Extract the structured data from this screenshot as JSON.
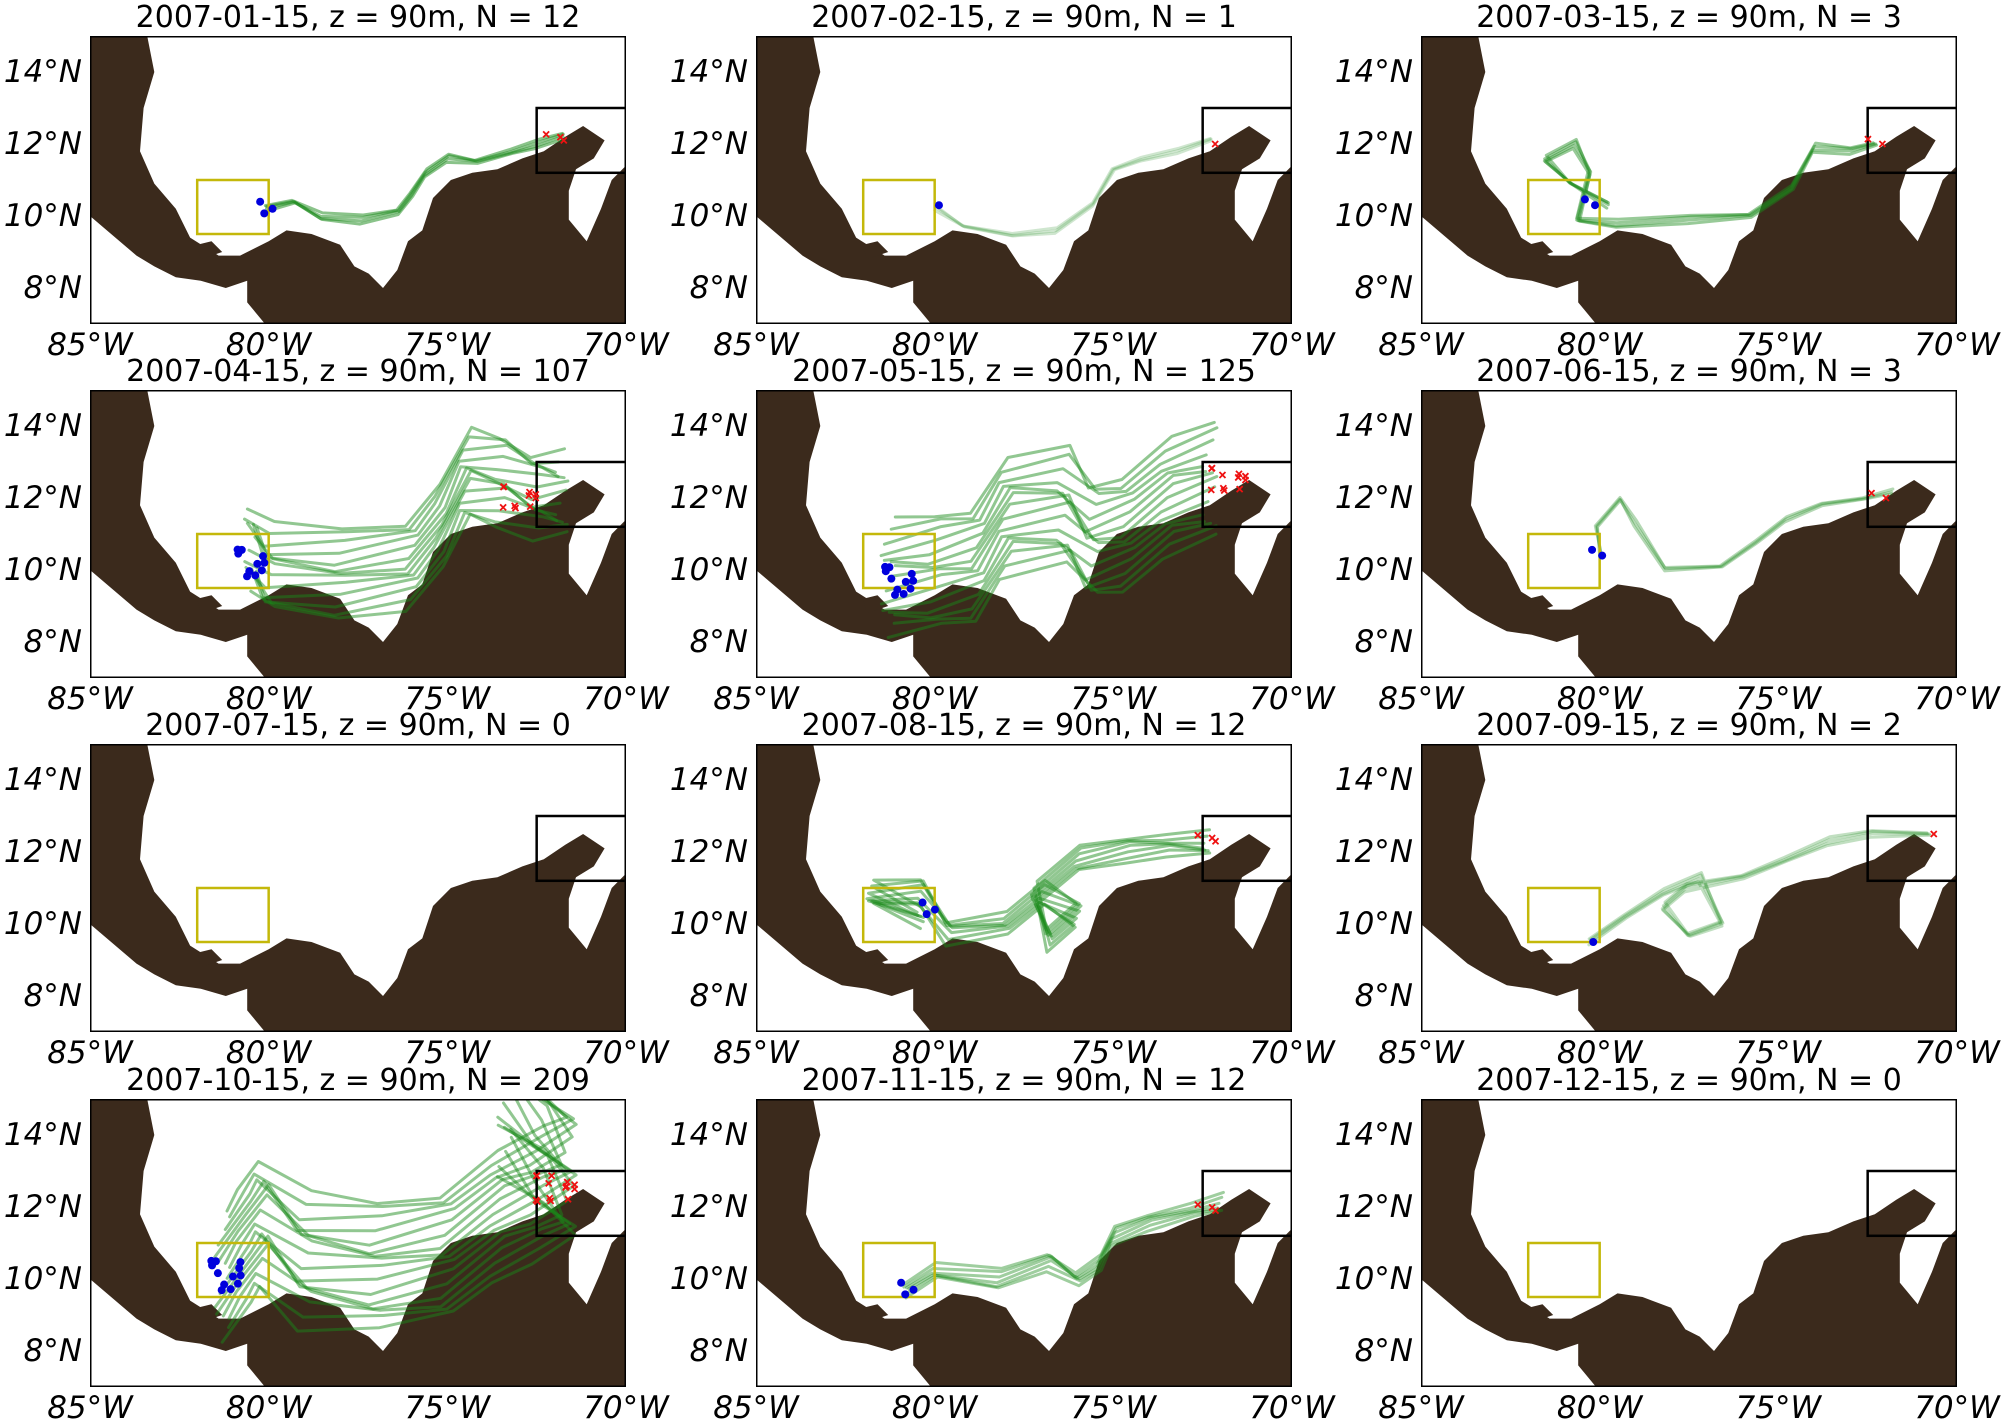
{
  "figure": {
    "lat_ticks": [
      "14°N",
      "12°N",
      "10°N",
      "8°N"
    ],
    "lon_ticks": [
      "85°W",
      "80°W",
      "75°W",
      "70°W"
    ],
    "colors": {
      "land": "#3b2a1c",
      "sea": "#ffffff",
      "trajectory": "#1a8a1a",
      "release_point": "#0000dd",
      "end_point": "#ee1111",
      "source_box": "#c4b80a",
      "target_box": "#000000"
    },
    "panels": [
      {
        "title": "2007-01-15, z = 90m, N = 12"
      },
      {
        "title": "2007-02-15, z = 90m, N = 1"
      },
      {
        "title": "2007-03-15, z = 90m, N = 3"
      },
      {
        "title": "2007-04-15, z = 90m, N = 107"
      },
      {
        "title": "2007-05-15, z = 90m, N = 125"
      },
      {
        "title": "2007-06-15, z = 90m, N = 3"
      },
      {
        "title": "2007-07-15, z = 90m, N = 0"
      },
      {
        "title": "2007-08-15, z = 90m, N = 12"
      },
      {
        "title": "2007-09-15, z = 90m, N = 2"
      },
      {
        "title": "2007-10-15, z = 90m, N = 209"
      },
      {
        "title": "2007-11-15, z = 90m, N = 12"
      },
      {
        "title": "2007-12-15, z = 90m, N = 0"
      }
    ]
  },
  "chart_data": {
    "type": "map",
    "lon_range": [
      -85,
      -70
    ],
    "lat_range": [
      7,
      15
    ],
    "source_box": {
      "lon": [
        -82,
        -80
      ],
      "lat": [
        9.5,
        11
      ]
    },
    "target_box": {
      "lon": [
        -72.5,
        -70
      ],
      "lat": [
        11.2,
        13
      ]
    },
    "panels": [
      {
        "date": "2007-01-15",
        "depth_m": 90,
        "N": 12,
        "path": [
          [
            -80.1,
            10.2
          ],
          [
            -79.3,
            10.4
          ],
          [
            -78.5,
            10.0
          ],
          [
            -77.4,
            9.9
          ],
          [
            -76.4,
            10.1
          ],
          [
            -76.0,
            10.6
          ],
          [
            -75.6,
            11.2
          ],
          [
            -75.0,
            11.6
          ],
          [
            -74.2,
            11.5
          ],
          [
            -73.2,
            11.8
          ],
          [
            -72.5,
            12.0
          ],
          [
            -71.8,
            12.2
          ]
        ],
        "spread": 0.6,
        "alpha": 0.85,
        "start": [
          -80.1,
          10.2
        ],
        "end": [
          -72.0,
          12.1
        ]
      },
      {
        "date": "2007-02-15",
        "depth_m": 90,
        "N": 1,
        "path": [
          [
            -80.0,
            10.2
          ],
          [
            -79.2,
            9.7
          ],
          [
            -77.8,
            9.5
          ],
          [
            -76.6,
            9.6
          ],
          [
            -75.6,
            10.3
          ],
          [
            -75.0,
            11.3
          ],
          [
            -74.2,
            11.6
          ],
          [
            -73.2,
            11.8
          ],
          [
            -72.3,
            12.1
          ]
        ],
        "spread": 0.5,
        "alpha": 0.35,
        "start": [
          -80.0,
          10.3
        ],
        "end": [
          -72.3,
          12.0
        ]
      },
      {
        "date": "2007-03-15",
        "depth_m": 90,
        "N": 3,
        "path": [
          [
            -79.8,
            10.3
          ],
          [
            -80.8,
            10.9
          ],
          [
            -81.5,
            11.6
          ],
          [
            -80.7,
            12.0
          ],
          [
            -80.3,
            11.2
          ],
          [
            -80.6,
            9.9
          ],
          [
            -79.5,
            9.8
          ],
          [
            -77.5,
            9.9
          ],
          [
            -75.8,
            10.0
          ],
          [
            -74.6,
            10.8
          ],
          [
            -74.0,
            11.9
          ],
          [
            -73.0,
            11.8
          ],
          [
            -72.3,
            12.0
          ]
        ],
        "spread": 0.6,
        "alpha": 0.75,
        "start": [
          -80.3,
          10.3
        ],
        "end": [
          -72.3,
          12.0
        ]
      },
      {
        "date": "2007-04-15",
        "depth_m": 90,
        "N": 107,
        "path": [
          [
            -80.5,
            10.6
          ],
          [
            -80.0,
            10.0
          ],
          [
            -78.0,
            9.9
          ],
          [
            -76.0,
            10.2
          ],
          [
            -75.2,
            11.2
          ],
          [
            -74.5,
            12.6
          ],
          [
            -73.5,
            12.5
          ],
          [
            -72.5,
            12.1
          ],
          [
            -71.8,
            12.1
          ]
        ],
        "spread": 2.2,
        "alpha": 0.8,
        "start": [
          -80.5,
          10.2
        ],
        "end": [
          -73.0,
          12.0
        ]
      },
      {
        "date": "2007-05-15",
        "depth_m": 90,
        "N": 125,
        "path": [
          [
            -81.3,
            9.7
          ],
          [
            -80.0,
            9.9
          ],
          [
            -78.8,
            10.2
          ],
          [
            -78.0,
            11.5
          ],
          [
            -76.4,
            11.7
          ],
          [
            -75.6,
            10.8
          ],
          [
            -74.6,
            11.1
          ],
          [
            -73.5,
            12.0
          ],
          [
            -72.3,
            12.4
          ]
        ],
        "spread": 2.5,
        "alpha": 0.8,
        "start": [
          -81.0,
          9.7
        ],
        "end": [
          -71.8,
          12.5
        ]
      },
      {
        "date": "2007-06-15",
        "depth_m": 90,
        "N": 3,
        "path": [
          [
            -80.0,
            10.4
          ],
          [
            -80.1,
            11.2
          ],
          [
            -79.4,
            12.0
          ],
          [
            -79.0,
            11.3
          ],
          [
            -78.2,
            10.0
          ],
          [
            -76.6,
            10.1
          ],
          [
            -75.6,
            10.8
          ],
          [
            -74.8,
            11.4
          ],
          [
            -73.8,
            11.8
          ],
          [
            -72.6,
            12.0
          ],
          [
            -71.8,
            12.2
          ]
        ],
        "spread": 0.5,
        "alpha": 0.55,
        "start": [
          -80.1,
          10.4
        ],
        "end": [
          -72.2,
          12.0
        ]
      },
      {
        "date": "2007-07-15",
        "depth_m": 90,
        "N": 0,
        "path": [],
        "spread": 0,
        "alpha": 0,
        "start": null,
        "end": null
      },
      {
        "date": "2007-08-15",
        "depth_m": 90,
        "N": 12,
        "path": [
          [
            -80.4,
            10.2
          ],
          [
            -81.8,
            10.8
          ],
          [
            -80.4,
            10.9
          ],
          [
            -79.6,
            9.8
          ],
          [
            -78.0,
            10.0
          ],
          [
            -77.0,
            10.8
          ],
          [
            -76.0,
            10.3
          ],
          [
            -76.8,
            9.6
          ],
          [
            -77.2,
            10.8
          ],
          [
            -76.0,
            11.8
          ],
          [
            -74.6,
            12.1
          ],
          [
            -73.5,
            12.2
          ],
          [
            -72.4,
            12.2
          ]
        ],
        "spread": 1.2,
        "alpha": 0.8,
        "start": [
          -80.2,
          10.4
        ],
        "end": [
          -72.4,
          12.3
        ]
      },
      {
        "date": "2007-09-15",
        "depth_m": 90,
        "N": 2,
        "path": [
          [
            -80.3,
            9.5
          ],
          [
            -79.3,
            10.2
          ],
          [
            -78.2,
            10.9
          ],
          [
            -77.2,
            11.3
          ],
          [
            -76.6,
            10.0
          ],
          [
            -77.5,
            9.7
          ],
          [
            -78.2,
            10.5
          ],
          [
            -77.6,
            11.0
          ],
          [
            -76.0,
            11.3
          ],
          [
            -74.8,
            11.8
          ],
          [
            -73.6,
            12.3
          ],
          [
            -72.4,
            12.5
          ],
          [
            -70.8,
            12.5
          ]
        ],
        "spread": 0.6,
        "alpha": 0.45,
        "start": [
          -80.3,
          9.5
        ],
        "end": [
          -70.8,
          12.5
        ]
      },
      {
        "date": "2007-10-15",
        "depth_m": 90,
        "N": 209,
        "path": [
          [
            -81.3,
            10.0
          ],
          [
            -80.7,
            10.9
          ],
          [
            -80.2,
            11.6
          ],
          [
            -79.0,
            10.5
          ],
          [
            -77.0,
            10.3
          ],
          [
            -75.0,
            10.7
          ],
          [
            -73.6,
            11.8
          ],
          [
            -72.5,
            12.3
          ],
          [
            -71.6,
            12.8
          ],
          [
            -72.4,
            13.8
          ],
          [
            -73.4,
            14.8
          ]
        ],
        "spread": 2.6,
        "alpha": 0.8,
        "start": [
          -81.2,
          10.1
        ],
        "end": [
          -72.0,
          12.5
        ]
      },
      {
        "date": "2007-11-15",
        "depth_m": 90,
        "N": 12,
        "path": [
          [
            -80.8,
            9.7
          ],
          [
            -80.0,
            10.2
          ],
          [
            -78.2,
            10.0
          ],
          [
            -76.8,
            10.5
          ],
          [
            -76.0,
            10.0
          ],
          [
            -75.4,
            10.4
          ],
          [
            -75.0,
            11.2
          ],
          [
            -74.0,
            11.6
          ],
          [
            -72.8,
            11.9
          ],
          [
            -72.0,
            12.1
          ]
        ],
        "spread": 1.0,
        "alpha": 0.7,
        "start": [
          -80.8,
          9.7
        ],
        "end": [
          -72.4,
          11.9
        ]
      },
      {
        "date": "2007-12-15",
        "depth_m": 90,
        "N": 0,
        "path": [],
        "spread": 0,
        "alpha": 0,
        "start": null,
        "end": null
      }
    ]
  }
}
